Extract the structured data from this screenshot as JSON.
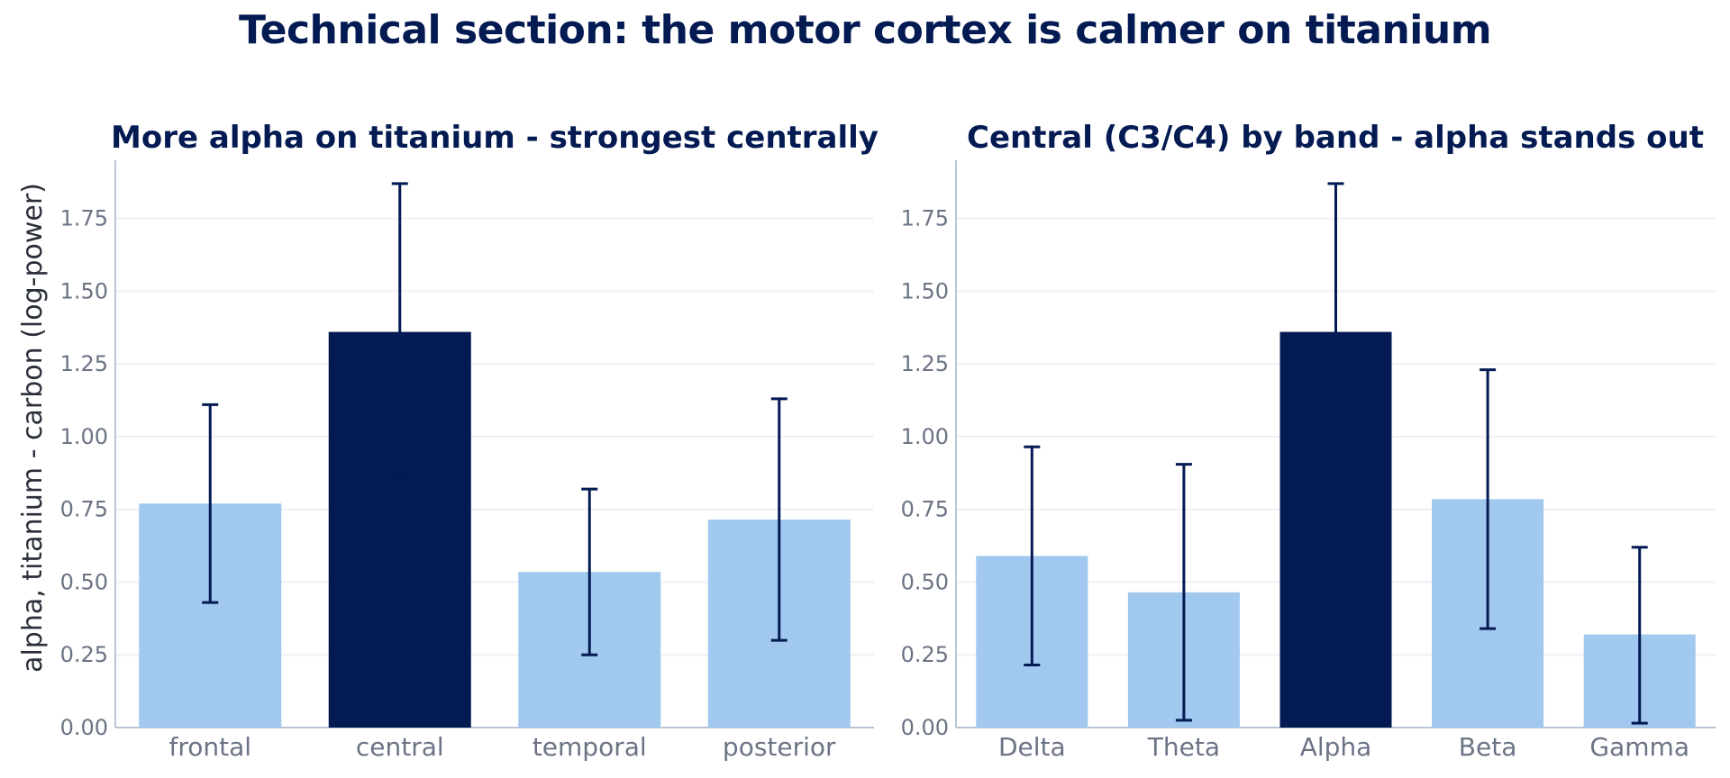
{
  "title": "Technical section: the motor cortex is calmer on titanium",
  "colors": {
    "highlight": "#031a52",
    "base": "#a1c8ee",
    "error": "#031a52",
    "grid": "#edf0f4",
    "axis": "#b9c3d3",
    "text": "#6b7385",
    "title": "#031a52"
  },
  "chart_data": [
    {
      "type": "bar",
      "title": "More alpha on titanium - strongest centrally",
      "xlabel": "",
      "ylabel": "alpha, titanium - carbon (log-power)",
      "ylim": [
        0,
        1.95
      ],
      "yticks": [
        "0.00",
        "0.25",
        "0.50",
        "0.75",
        "1.00",
        "1.25",
        "1.50",
        "1.75"
      ],
      "grid": true,
      "categories": [
        "frontal",
        "central",
        "temporal",
        "posterior"
      ],
      "values": [
        0.77,
        1.36,
        0.535,
        0.715
      ],
      "error_low": [
        0.43,
        0.85,
        0.25,
        0.3
      ],
      "error_high": [
        1.11,
        1.87,
        0.82,
        1.13
      ],
      "highlight": [
        "central"
      ]
    },
    {
      "type": "bar",
      "title": "Central (C3/C4) by band - alpha stands out",
      "xlabel": "",
      "ylabel": "",
      "ylim": [
        0,
        1.95
      ],
      "yticks": [
        "0.00",
        "0.25",
        "0.50",
        "0.75",
        "1.00",
        "1.25",
        "1.50",
        "1.75"
      ],
      "grid": true,
      "categories": [
        "Delta",
        "Theta",
        "Alpha",
        "Beta",
        "Gamma"
      ],
      "values": [
        0.59,
        0.465,
        1.36,
        0.785,
        0.32
      ],
      "error_low": [
        0.215,
        0.025,
        0.85,
        0.34,
        0.015
      ],
      "error_high": [
        0.965,
        0.905,
        1.87,
        1.23,
        0.62
      ],
      "highlight": [
        "Alpha"
      ]
    }
  ]
}
